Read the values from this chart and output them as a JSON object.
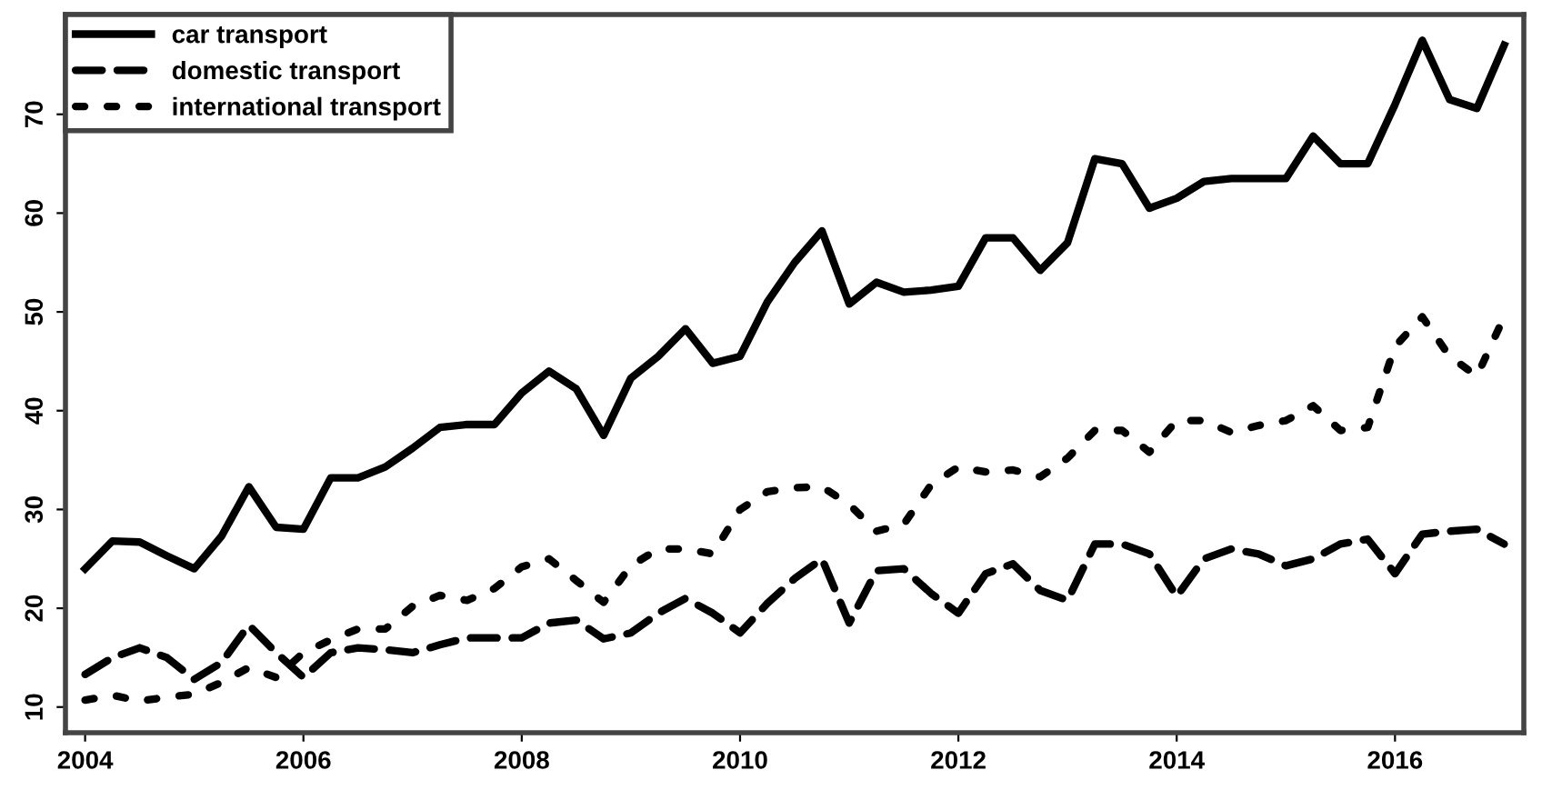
{
  "chart_data": {
    "type": "line",
    "x": [
      2004,
      2004.25,
      2004.5,
      2004.75,
      2005,
      2005.25,
      2005.5,
      2005.75,
      2006,
      2006.25,
      2006.5,
      2006.75,
      2007,
      2007.25,
      2007.5,
      2007.75,
      2008,
      2008.25,
      2008.5,
      2008.75,
      2009,
      2009.25,
      2009.5,
      2009.75,
      2010,
      2010.25,
      2010.5,
      2010.75,
      2011,
      2011.25,
      2011.5,
      2011.75,
      2012,
      2012.25,
      2012.5,
      2012.75,
      2013,
      2013.25,
      2013.5,
      2013.75,
      2014,
      2014.25,
      2014.5,
      2014.75,
      2015,
      2015.25,
      2015.5,
      2015.75,
      2016,
      2016.25,
      2016.5,
      2016.75,
      2017
    ],
    "series": [
      {
        "name": "car transport",
        "color": "#000000",
        "line_style": "solid",
        "values": [
          24,
          26.8,
          26.7,
          25.3,
          24,
          27.3,
          32.3,
          28.2,
          28,
          33.2,
          33.2,
          34.3,
          36.2,
          38.3,
          38.6,
          38.6,
          41.8,
          44,
          42.2,
          37.5,
          43.3,
          45.5,
          48.3,
          44.8,
          45.5,
          51,
          55,
          58.2,
          50.8,
          53,
          52,
          52.2,
          52.6,
          57.5,
          57.5,
          54.2,
          57,
          65.5,
          65,
          60.5,
          61.5,
          63.2,
          63.5,
          63.5,
          63.5,
          67.8,
          65,
          65,
          71,
          77.5,
          71.5,
          70.6,
          77
        ]
      },
      {
        "name": "domestic transport",
        "color": "#000000",
        "line_style": "dashed",
        "values": [
          13.3,
          15,
          16,
          15,
          12.8,
          14.5,
          18.3,
          15.5,
          13,
          15.5,
          16,
          15.8,
          15.5,
          16.3,
          17,
          17,
          17,
          18.5,
          18.8,
          16.9,
          17.5,
          19.5,
          21,
          19.5,
          17.5,
          20.5,
          23,
          25,
          18.5,
          23.8,
          24,
          21.5,
          19.5,
          23.5,
          24.5,
          21.8,
          20.8,
          26.5,
          26.5,
          25.5,
          21.2,
          25,
          26,
          25.5,
          24.3,
          25,
          26.5,
          27,
          23.5,
          27.5,
          27.8,
          28,
          26.5
        ]
      },
      {
        "name": "international transport",
        "color": "#000000",
        "line_style": "dotted",
        "values": [
          10.7,
          11.2,
          10.6,
          11,
          11.3,
          12.5,
          14,
          13,
          15.5,
          16.8,
          17.9,
          17.9,
          20.2,
          21.3,
          20.8,
          22,
          24.2,
          25,
          22.8,
          20.6,
          24.3,
          26,
          26,
          25.5,
          30,
          31.8,
          32.2,
          32.3,
          30.5,
          27.8,
          28.5,
          32.5,
          34.3,
          33.8,
          34,
          33.3,
          35.2,
          38,
          38,
          35.8,
          39,
          39,
          37.8,
          38.5,
          39,
          40.5,
          38,
          38.3,
          46.5,
          49.5,
          45.5,
          43.5,
          49.5
        ]
      }
    ],
    "xlim": [
      2003.82,
      2017.18
    ],
    "ylim": [
      7.4,
      80.1
    ],
    "xticks": [
      2004,
      2006,
      2008,
      2010,
      2012,
      2014,
      2016
    ],
    "yticks": [
      10,
      20,
      30,
      40,
      50,
      60,
      70
    ],
    "grid": false,
    "legend": "top left"
  }
}
